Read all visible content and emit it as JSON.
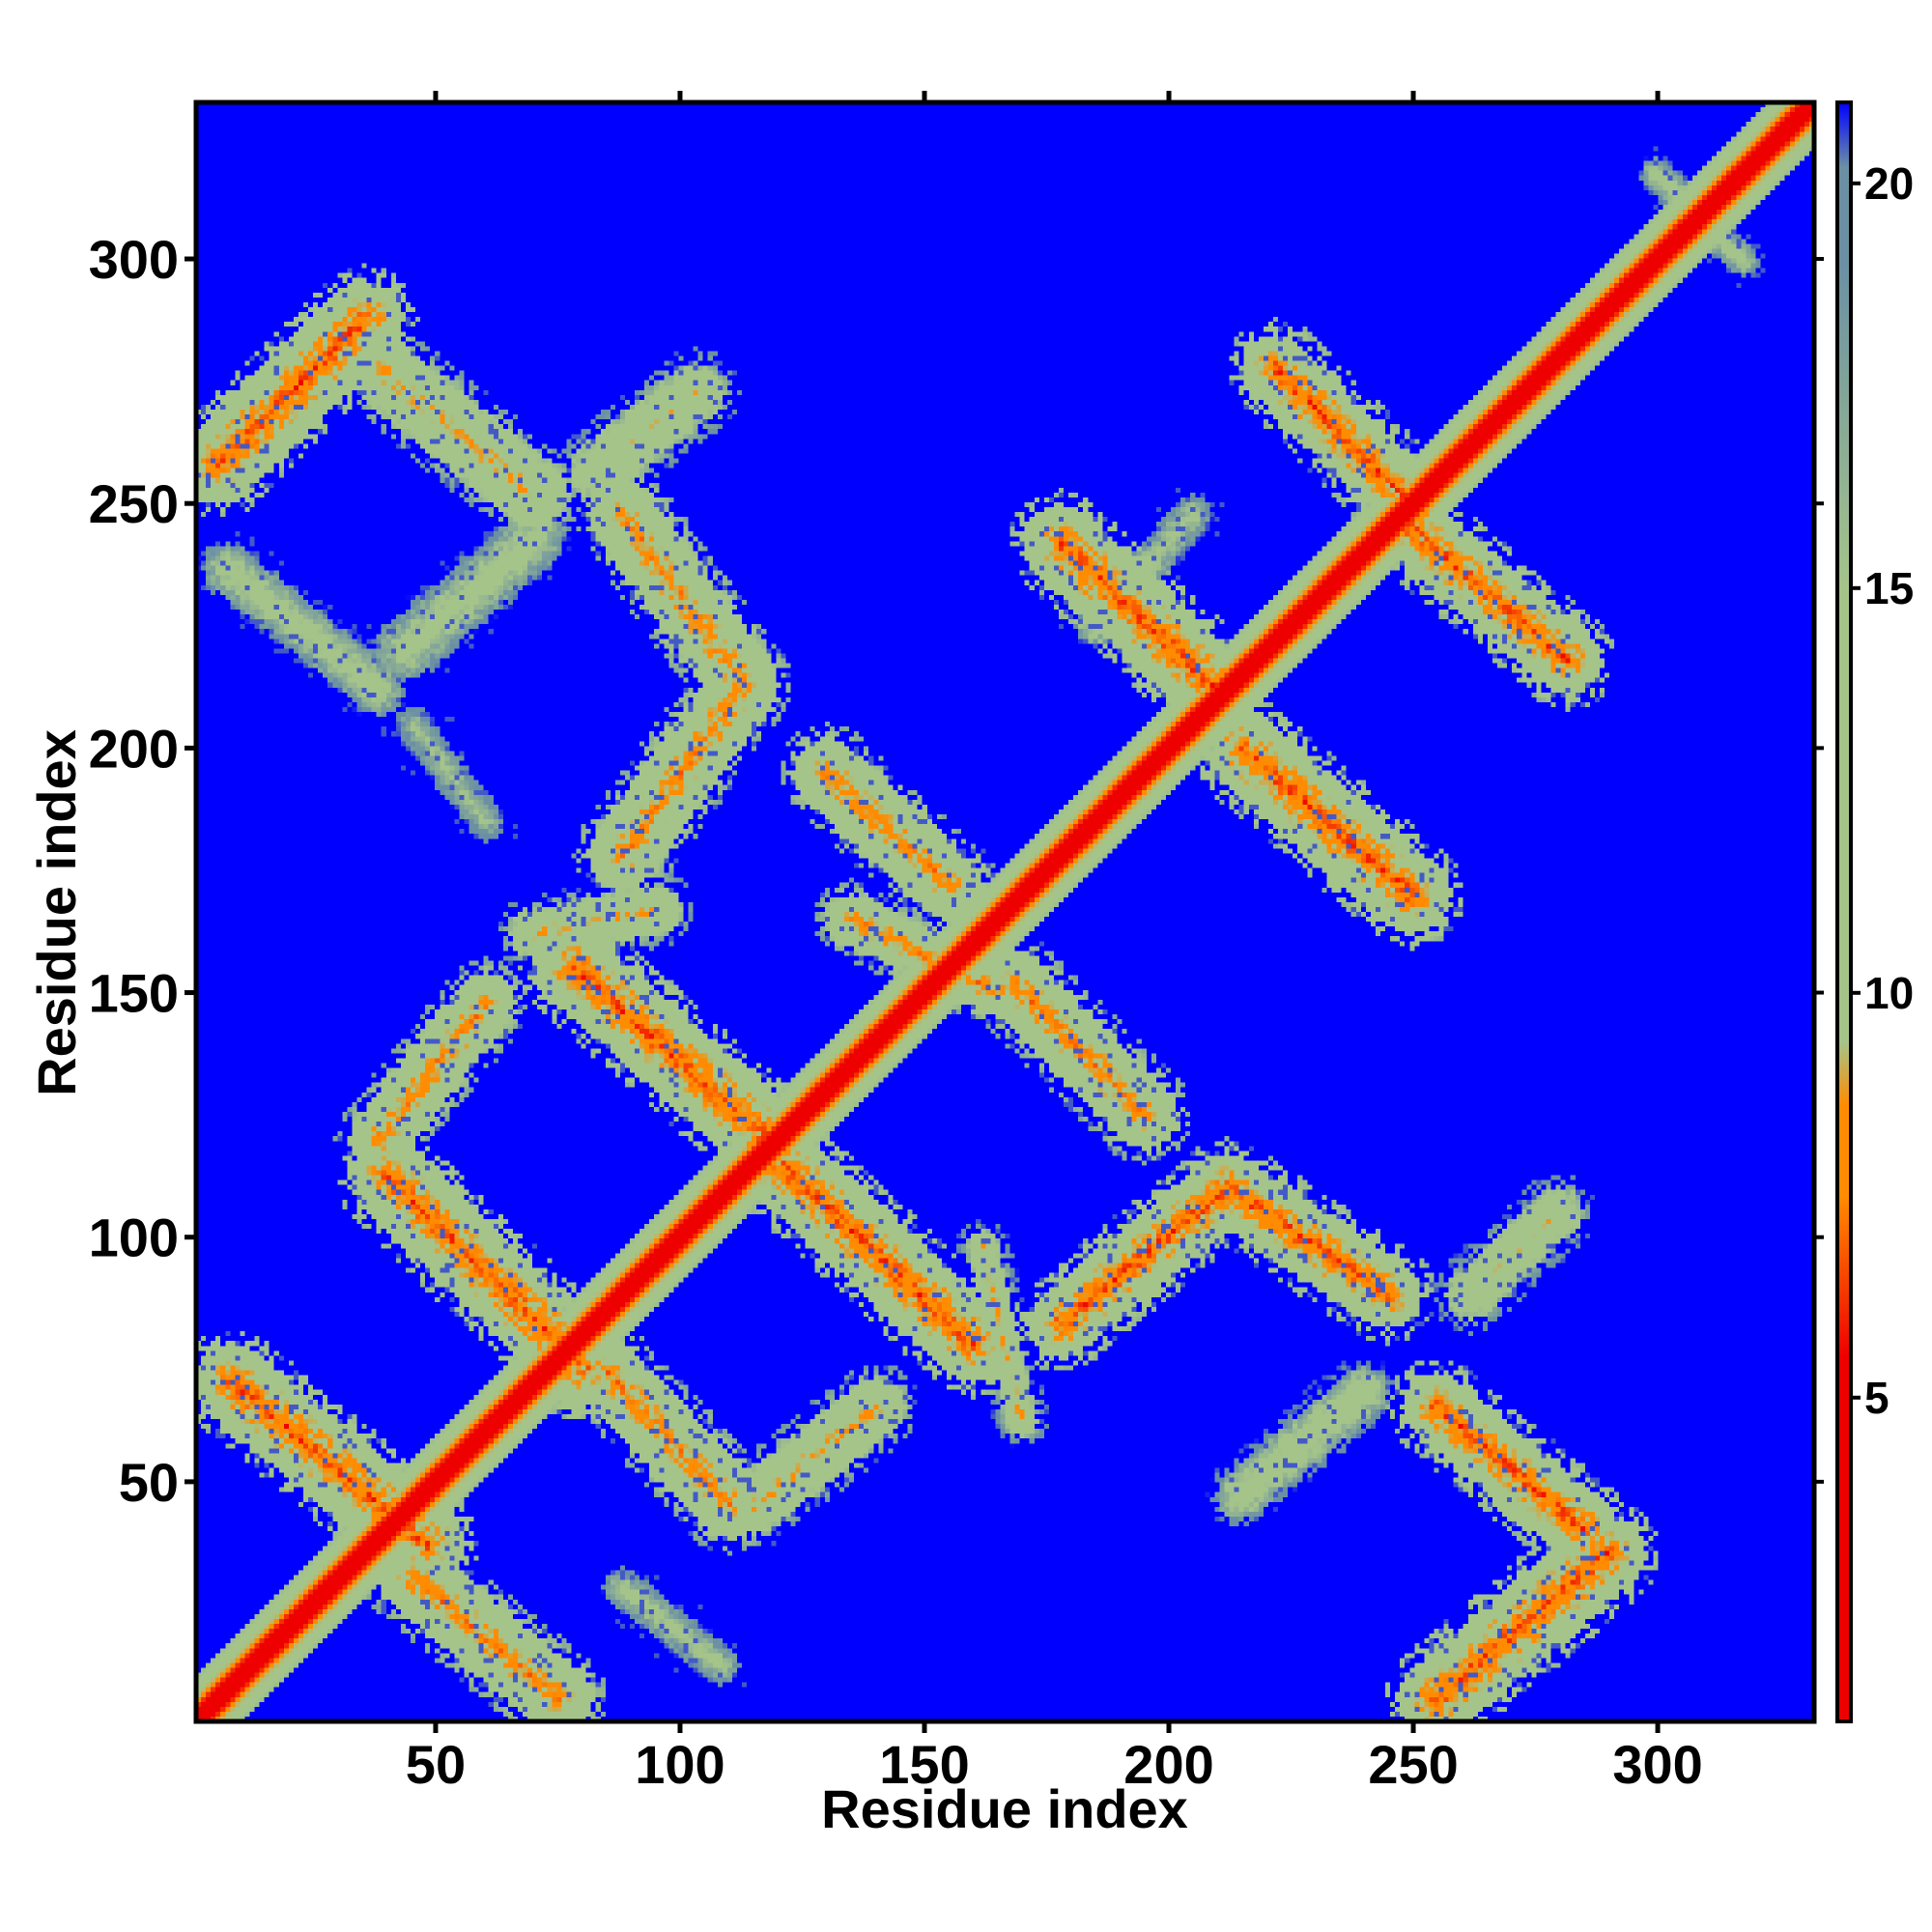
{
  "chart_data": {
    "type": "heatmap",
    "title": "",
    "xlabel": "Residue index",
    "ylabel": "Residue index",
    "xlim": [
      1,
      332
    ],
    "ylim": [
      1,
      332
    ],
    "x_ticks": [
      50,
      100,
      150,
      200,
      250,
      300
    ],
    "y_ticks": [
      50,
      100,
      150,
      200,
      250,
      300
    ],
    "x_tick_labels": [
      "50",
      "100",
      "150",
      "200",
      "250",
      "300"
    ],
    "y_tick_labels": [
      "50",
      "100",
      "150",
      "200",
      "250",
      "300"
    ],
    "colorbar": {
      "ticks": [
        5,
        10,
        15,
        20
      ],
      "tick_labels": [
        "5",
        "10",
        "15",
        "20"
      ],
      "range": [
        1,
        21
      ],
      "colors": {
        "low": "#ee0000",
        "orange": "#ff8c00",
        "sage": "#a5c48a",
        "slate": "#6b90a4",
        "high": "#0000ff"
      }
    },
    "background_value": 21,
    "diagonal": {
      "core_value": 1.5,
      "band_width_residues": 9
    },
    "contact_segments": [
      {
        "from": [
          5,
          258
        ],
        "to": [
          35,
          288
        ],
        "width": 8,
        "value": 7
      },
      {
        "from": [
          38,
          278
        ],
        "to": [
          70,
          252
        ],
        "width": 7,
        "value": 9
      },
      {
        "from": [
          83,
          257
        ],
        "to": [
          103,
          273
        ],
        "width": 6,
        "value": 10
      },
      {
        "from": [
          7,
          237
        ],
        "to": [
          38,
          212
        ],
        "width": 5,
        "value": 13
      },
      {
        "from": [
          43,
          220
        ],
        "to": [
          70,
          243
        ],
        "width": 6,
        "value": 13
      },
      {
        "from": [
          88,
          248
        ],
        "to": [
          113,
          213
        ],
        "width": 7,
        "value": 8
      },
      {
        "from": [
          112,
          212
        ],
        "to": [
          88,
          178
        ],
        "width": 7,
        "value": 8
      },
      {
        "from": [
          45,
          205
        ],
        "to": [
          60,
          185
        ],
        "width": 4,
        "value": 15
      },
      {
        "from": [
          70,
          162
        ],
        "to": [
          95,
          167
        ],
        "width": 5,
        "value": 9
      },
      {
        "from": [
          78,
          155
        ],
        "to": [
          120,
          118
        ],
        "width": 8,
        "value": 7
      },
      {
        "from": [
          38,
          120
        ],
        "to": [
          60,
          148
        ],
        "width": 6,
        "value": 8
      },
      {
        "from": [
          40,
          112
        ],
        "to": [
          80,
          73
        ],
        "width": 8,
        "value": 7
      },
      {
        "from": [
          8,
          70
        ],
        "to": [
          48,
          37
        ],
        "width": 8,
        "value": 7
      },
      {
        "from": [
          45,
          30
        ],
        "to": [
          75,
          5
        ],
        "width": 7,
        "value": 8
      },
      {
        "from": [
          85,
          72
        ],
        "to": [
          110,
          45
        ],
        "width": 7,
        "value": 8
      },
      {
        "from": [
          115,
          45
        ],
        "to": [
          140,
          65
        ],
        "width": 6,
        "value": 9
      },
      {
        "from": [
          88,
          28
        ],
        "to": [
          108,
          12
        ],
        "width": 4,
        "value": 14
      },
      {
        "from": [
          120,
          115
        ],
        "to": [
          160,
          78
        ],
        "width": 8,
        "value": 7
      },
      {
        "from": [
          130,
          195
        ],
        "to": [
          155,
          172
        ],
        "width": 7,
        "value": 8
      },
      {
        "from": [
          135,
          165
        ],
        "to": [
          165,
          150
        ],
        "width": 5,
        "value": 8
      },
      {
        "from": [
          168,
          152
        ],
        "to": [
          195,
          125
        ],
        "width": 7,
        "value": 8
      },
      {
        "from": [
          178,
          242
        ],
        "to": [
          210,
          212
        ],
        "width": 8,
        "value": 7
      },
      {
        "from": [
          215,
          200
        ],
        "to": [
          250,
          170
        ],
        "width": 8,
        "value": 7
      },
      {
        "from": [
          222,
          278
        ],
        "to": [
          250,
          250
        ],
        "width": 7,
        "value": 7
      },
      {
        "from": [
          250,
          245
        ],
        "to": [
          282,
          218
        ],
        "width": 7,
        "value": 7
      },
      {
        "from": [
          178,
          82
        ],
        "to": [
          212,
          110
        ],
        "width": 7,
        "value": 7
      },
      {
        "from": [
          212,
          110
        ],
        "to": [
          245,
          88
        ],
        "width": 7,
        "value": 7
      },
      {
        "from": [
          255,
          65
        ],
        "to": [
          285,
          40
        ],
        "width": 7,
        "value": 7
      },
      {
        "from": [
          255,
          5
        ],
        "to": [
          290,
          35
        ],
        "width": 8,
        "value": 7
      },
      {
        "from": [
          262,
          88
        ],
        "to": [
          280,
          105
        ],
        "width": 5,
        "value": 10
      },
      {
        "from": [
          215,
          47
        ],
        "to": [
          240,
          68
        ],
        "width": 5,
        "value": 12
      },
      {
        "from": [
          162,
          98
        ],
        "to": [
          170,
          62
        ],
        "width": 3,
        "value": 9
      },
      {
        "from": [
          185,
          225
        ],
        "to": [
          205,
          248
        ],
        "width": 4,
        "value": 14
      },
      {
        "from": [
          300,
          318
        ],
        "to": [
          318,
          300
        ],
        "width": 3,
        "value": 13
      }
    ]
  }
}
